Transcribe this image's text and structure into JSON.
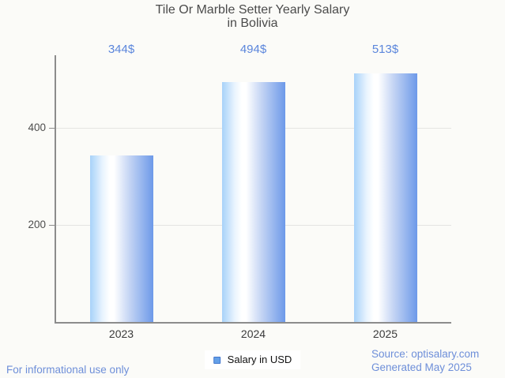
{
  "title": {
    "line1": "Tile Or Marble Setter Yearly Salary",
    "line2": "in Bolivia"
  },
  "chart_data": {
    "type": "bar",
    "title": "Tile Or Marble Setter Yearly Salary in Bolivia",
    "categories": [
      "2023",
      "2024",
      "2025"
    ],
    "series": [
      {
        "name": "Salary in USD",
        "values": [
          344,
          494,
          513
        ]
      }
    ],
    "value_labels": [
      "344$",
      "494$",
      "513$"
    ],
    "xlabel": "",
    "ylabel": "",
    "y_ticks": [
      200,
      400
    ],
    "ylim": [
      0,
      550
    ],
    "grid": true,
    "legend_position": "bottom-center"
  },
  "legend": {
    "label": "Salary in USD"
  },
  "footer": {
    "left": "For informational use only",
    "source": "Source: optisalary.com",
    "generated": "Generated May 2025"
  },
  "colors": {
    "background": "#fbfbf8",
    "title_text": "#4b4b4b",
    "value_label_text": "#5b86dc",
    "axis": "#8c8c8c",
    "gridline": "#e4e4e2",
    "tick_label_text": "#4d4d4d",
    "category_label_text": "#3b3b3b",
    "footer_text": "#6e8fd9",
    "bar_gradient_left": "#a8d2f9",
    "bar_gradient_mid": "#ffffff",
    "bar_gradient_right": "#6d99e9",
    "legend_swatch_fill": "#64a0e8",
    "legend_swatch_border": "#4478cd"
  }
}
